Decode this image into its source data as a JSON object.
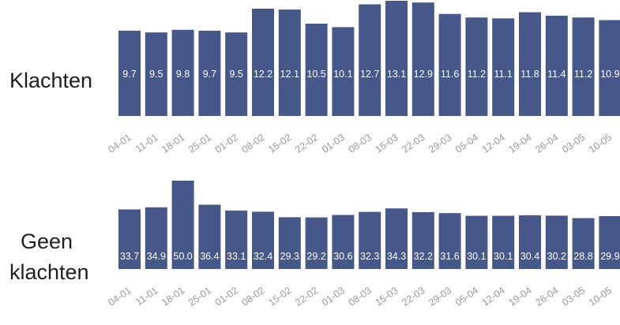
{
  "chart_data": [
    {
      "type": "bar",
      "label": "Klachten",
      "categories": [
        "04-01",
        "11-01",
        "18-01",
        "25-01",
        "01-02",
        "08-02",
        "15-02",
        "22-02",
        "01-03",
        "08-03",
        "15-03",
        "22-03",
        "29-03",
        "05-04",
        "12-04",
        "19-04",
        "26-04",
        "03-05",
        "10-05"
      ],
      "values": [
        9.7,
        9.5,
        9.8,
        9.7,
        9.5,
        12.2,
        12.1,
        10.5,
        10.1,
        12.7,
        13.1,
        12.9,
        11.6,
        11.2,
        11.1,
        11.8,
        11.4,
        11.2,
        10.9
      ],
      "value_labels": [
        "9.7",
        "9.5",
        "9.8",
        "9.7",
        "9.5",
        "12.2",
        "12.1",
        "10.5",
        "10.1",
        "12.7",
        "13.1",
        "12.9",
        "11.6",
        "11.2",
        "11.1",
        "11.8",
        "11.4",
        "11.2",
        "10.9"
      ],
      "bar_color": "#46578a"
    },
    {
      "type": "bar",
      "label": "Geen klachten",
      "categories": [
        "04-01",
        "11-01",
        "18-01",
        "25-01",
        "01-02",
        "08-02",
        "15-02",
        "22-02",
        "01-03",
        "08-03",
        "15-03",
        "22-03",
        "29-03",
        "05-04",
        "12-04",
        "19-04",
        "26-04",
        "03-05",
        "10-05"
      ],
      "values": [
        33.7,
        34.9,
        50.0,
        36.4,
        33.1,
        32.4,
        29.3,
        29.2,
        30.6,
        32.3,
        34.3,
        32.2,
        31.6,
        30.1,
        30.1,
        30.4,
        30.2,
        28.8,
        29.9
      ],
      "value_labels": [
        "33.7",
        "34.9",
        "50.0",
        "36.4",
        "33.1",
        "32.4",
        "29.3",
        "29.2",
        "30.6",
        "32.3",
        "34.3",
        "32.2",
        "31.6",
        "30.1",
        "30.1",
        "30.4",
        "30.2",
        "28.8",
        "29.9"
      ],
      "bar_color": "#46578a"
    }
  ]
}
